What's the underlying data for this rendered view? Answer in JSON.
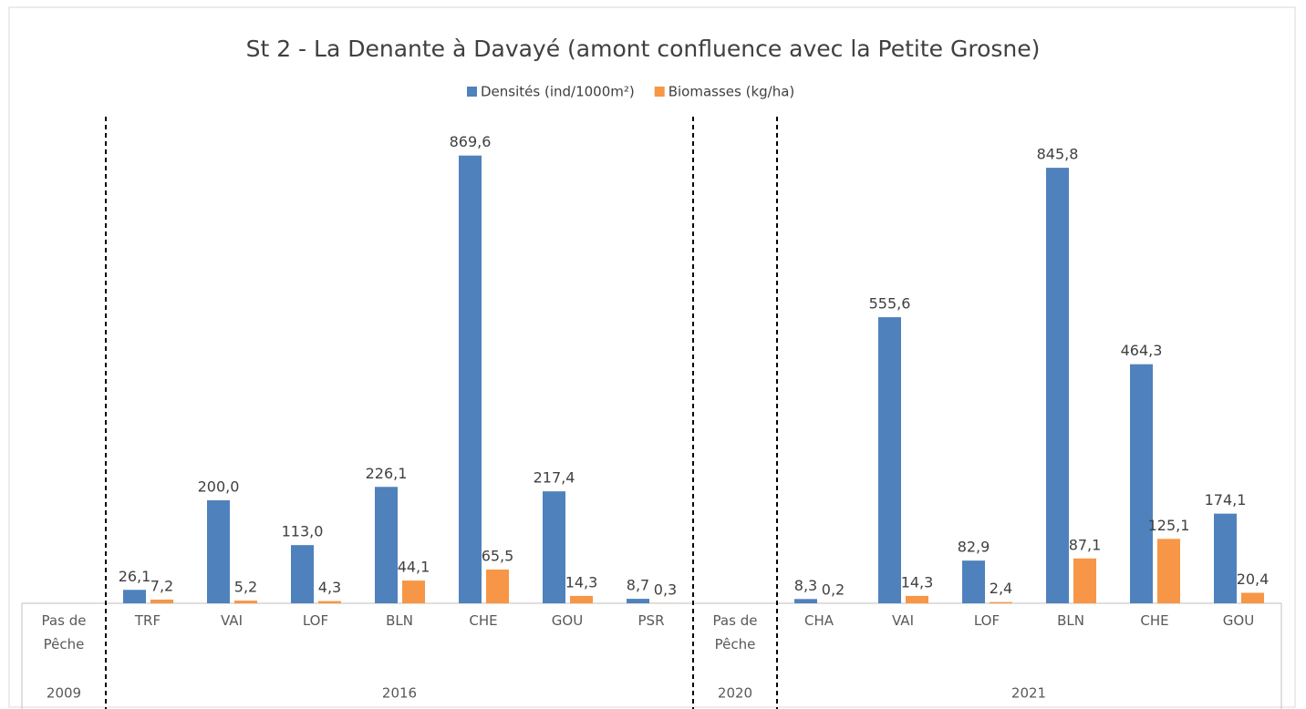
{
  "chart_data": {
    "type": "bar",
    "title": "St 2 - La Denante à Davayé (amont confluence avec la Petite Grosne)",
    "groups": [
      {
        "label": "2009",
        "categories": [
          "Pas de Pêche"
        ]
      },
      {
        "label": "2016",
        "categories": [
          "TRF",
          "VAI",
          "LOF",
          "BLN",
          "CHE",
          "GOU",
          "PSR"
        ]
      },
      {
        "label": "2020",
        "categories": [
          "Pas de Pêche"
        ]
      },
      {
        "label": "2021",
        "categories": [
          "CHA",
          "VAI",
          "LOF",
          "BLN",
          "CHE",
          "GOU"
        ]
      }
    ],
    "series": [
      {
        "name": "Densités (ind/1000m²)",
        "color": "#4f81bd",
        "values": [
          null,
          26.1,
          200.0,
          113.0,
          226.1,
          869.6,
          217.4,
          8.7,
          null,
          8.3,
          555.6,
          82.9,
          845.8,
          464.3,
          174.1
        ],
        "value_labels": [
          null,
          "26,1",
          "200,0",
          "113,0",
          "226,1",
          "869,6",
          "217,4",
          "8,7",
          null,
          "8,3",
          "555,6",
          "82,9",
          "845,8",
          "464,3",
          "174,1"
        ]
      },
      {
        "name": "Biomasses  (kg/ha)",
        "color": "#f79646",
        "values": [
          null,
          7.2,
          5.2,
          4.3,
          44.1,
          65.5,
          14.3,
          0.3,
          null,
          0.2,
          14.3,
          2.4,
          87.1,
          125.1,
          20.4
        ],
        "value_labels": [
          null,
          "7,2",
          "5,2",
          "4,3",
          "44,1",
          "65,5",
          "14,3",
          "0,3",
          null,
          "0,2",
          "14,3",
          "2,4",
          "87,1",
          "125,1",
          "20,4"
        ]
      }
    ],
    "ylim": [
      0,
      1000
    ],
    "legend": "top"
  }
}
